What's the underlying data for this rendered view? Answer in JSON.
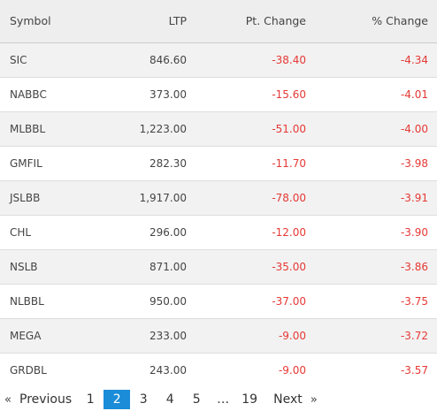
{
  "table": {
    "headers": {
      "symbol": "Symbol",
      "ltp": "LTP",
      "pt_change": "Pt. Change",
      "pct_change": "% Change"
    },
    "rows": [
      {
        "symbol": "SIC",
        "ltp": "846.60",
        "pt_change": "-38.40",
        "pct_change": "-4.34"
      },
      {
        "symbol": "NABBC",
        "ltp": "373.00",
        "pt_change": "-15.60",
        "pct_change": "-4.01"
      },
      {
        "symbol": "MLBBL",
        "ltp": "1,223.00",
        "pt_change": "-51.00",
        "pct_change": "-4.00"
      },
      {
        "symbol": "GMFIL",
        "ltp": "282.30",
        "pt_change": "-11.70",
        "pct_change": "-3.98"
      },
      {
        "symbol": "JSLBB",
        "ltp": "1,917.00",
        "pt_change": "-78.00",
        "pct_change": "-3.91"
      },
      {
        "symbol": "CHL",
        "ltp": "296.00",
        "pt_change": "-12.00",
        "pct_change": "-3.90"
      },
      {
        "symbol": "NSLB",
        "ltp": "871.00",
        "pt_change": "-35.00",
        "pct_change": "-3.86"
      },
      {
        "symbol": "NLBBL",
        "ltp": "950.00",
        "pt_change": "-37.00",
        "pct_change": "-3.75"
      },
      {
        "symbol": "MEGA",
        "ltp": "233.00",
        "pt_change": "-9.00",
        "pct_change": "-3.72"
      },
      {
        "symbol": "GRDBL",
        "ltp": "243.00",
        "pt_change": "-9.00",
        "pct_change": "-3.57"
      }
    ]
  },
  "pagination": {
    "prev_arrow": "«",
    "prev_label": "Previous",
    "pages": [
      "1",
      "2",
      "3",
      "4",
      "5"
    ],
    "active_page": "2",
    "ellipsis": "…",
    "last_page": "19",
    "next_label": "Next",
    "next_arrow": "»"
  },
  "colors": {
    "negative": "#e53935",
    "active_page_bg": "#1a8cd8",
    "header_bg": "#eeeeee",
    "stripe_bg": "#f2f2f2"
  }
}
